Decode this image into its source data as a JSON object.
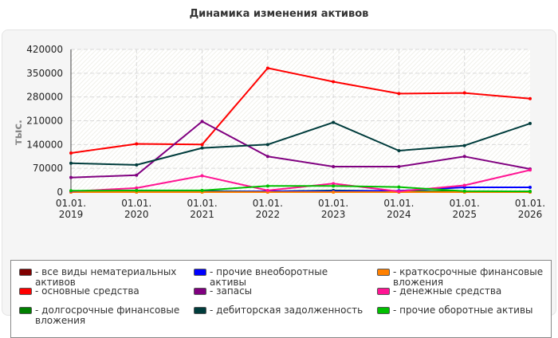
{
  "title": "Динамика изменения активов",
  "chart_data": {
    "type": "line",
    "title": "Динамика изменения активов",
    "ylabel": "тыс.",
    "xlabel": "",
    "x": [
      [
        "01.01.",
        "2019"
      ],
      [
        "01.01.",
        "2020"
      ],
      [
        "01.01.",
        "2021"
      ],
      [
        "01.01.",
        "2022"
      ],
      [
        "01.01.",
        "2023"
      ],
      [
        "01.01.",
        "2024"
      ],
      [
        "01.01.",
        "2025"
      ],
      [
        "01.01.",
        "2026"
      ]
    ],
    "ylim": [
      0,
      420000
    ],
    "yticks": [
      "0",
      "70000",
      "140000",
      "210000",
      "280000",
      "350000",
      "420000"
    ],
    "grid": true,
    "legend_position": "bottom",
    "series": [
      {
        "name": "- все виды нематериальных активов",
        "color": "#800000",
        "values": [
          0,
          0,
          0,
          0,
          0,
          0,
          0,
          0
        ]
      },
      {
        "name": "- основные средства",
        "color": "#ff0000",
        "values": [
          115000,
          142000,
          140000,
          365000,
          325000,
          290000,
          292000,
          275000
        ]
      },
      {
        "name": "- долгосрочные финансовые вложения",
        "color": "#008000",
        "values": [
          2000,
          3000,
          3000,
          2000,
          5000,
          3000,
          2000,
          2000
        ]
      },
      {
        "name": "- прочие внеоборотные активы",
        "color": "#0000ff",
        "values": [
          1000,
          1000,
          1000,
          2000,
          3000,
          4000,
          14000,
          14000
        ]
      },
      {
        "name": "- запасы",
        "color": "#800080",
        "values": [
          43000,
          50000,
          208000,
          105000,
          75000,
          75000,
          105000,
          68000
        ]
      },
      {
        "name": "- дебиторская задолженность",
        "color": "#003c3c",
        "values": [
          85000,
          80000,
          130000,
          140000,
          205000,
          122000,
          137000,
          202000
        ]
      },
      {
        "name": "- краткосрочные финансовые вложения",
        "color": "#ff8000",
        "values": [
          0,
          0,
          0,
          0,
          0,
          0,
          0,
          0
        ]
      },
      {
        "name": "- денежные средства",
        "color": "#ff1493",
        "values": [
          2000,
          12000,
          48000,
          5000,
          25000,
          2000,
          20000,
          65000
        ]
      },
      {
        "name": "- прочие оборотные активы",
        "color": "#00c000",
        "values": [
          4000,
          5000,
          5000,
          18000,
          18000,
          15000,
          3000,
          2000
        ]
      }
    ]
  }
}
